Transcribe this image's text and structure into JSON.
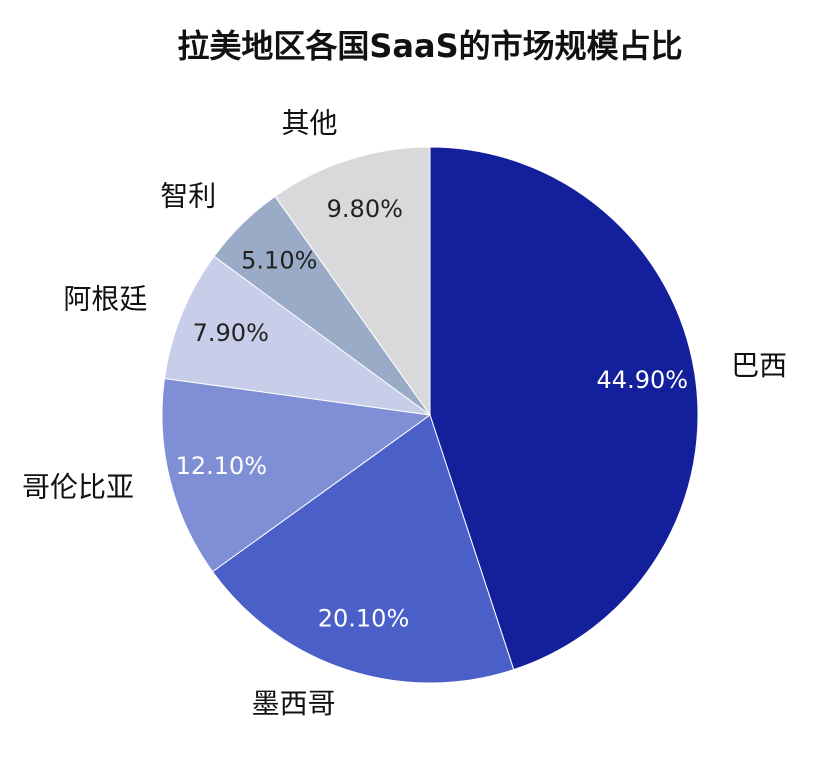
{
  "chart_data": {
    "type": "pie",
    "title": "拉美地区各国SaaS的市场规模占比",
    "categories": [
      "巴西",
      "墨西哥",
      "哥伦比亚",
      "阿根廷",
      "智利",
      "其他"
    ],
    "values": [
      44.9,
      20.1,
      12.1,
      7.9,
      5.1,
      9.8
    ],
    "value_labels": [
      "44.90%",
      "20.10%",
      "12.10%",
      "7.90%",
      "5.10%",
      "9.80%"
    ],
    "colors": [
      "#141f9c",
      "#4a5fc8",
      "#7f8fd6",
      "#c8cdea",
      "#9aabc8",
      "#d9d9db"
    ]
  }
}
